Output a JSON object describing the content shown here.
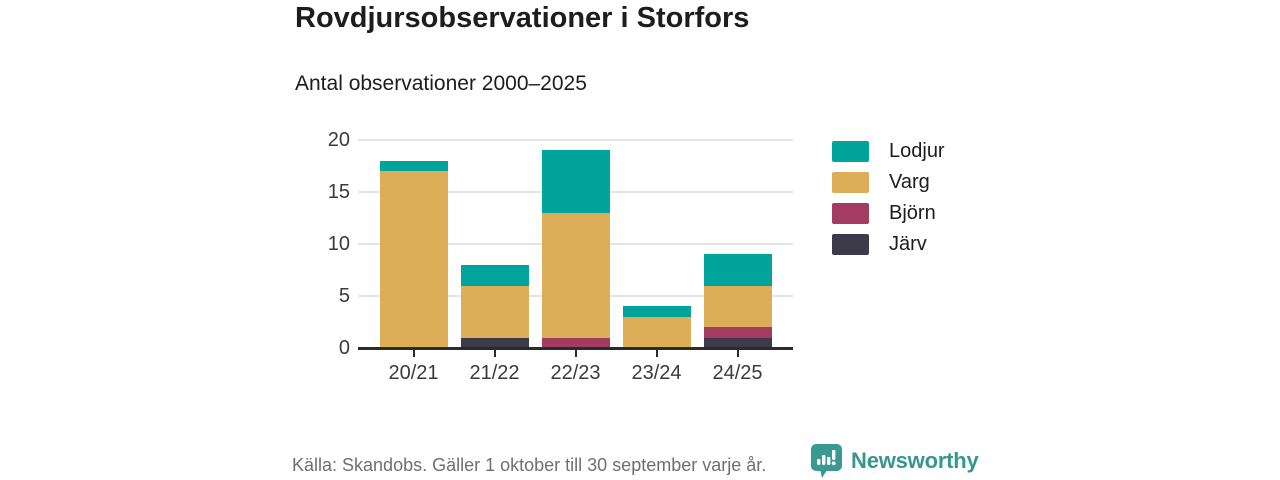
{
  "header": {
    "title": "Rovdjursobservationer i Storfors",
    "subtitle": "Antal observationer 2000–2025"
  },
  "footer": {
    "source": "Källa: Skandobs. Gäller 1 oktober till 30 september varje år.",
    "brand": "Newsworthy"
  },
  "colors": {
    "lodjur": "#00a49a",
    "varg": "#dcae57",
    "bjorn": "#a43c62",
    "jarv": "#3d3b4b",
    "axis": "#2b2b2b",
    "grid": "#e4e4e4",
    "text": "#1d1d1d",
    "muted": "#6f6f6f",
    "brand_teal": "#37968f"
  },
  "chart_data": {
    "type": "bar",
    "stacked": true,
    "title": "Rovdjursobservationer i Storfors",
    "subtitle": "Antal observationer 2000–2025",
    "categories": [
      "20/21",
      "21/22",
      "22/23",
      "23/24",
      "24/25"
    ],
    "series": [
      {
        "name": "Lodjur",
        "color": "#00a49a",
        "values": [
          1,
          2,
          6,
          1,
          3
        ]
      },
      {
        "name": "Varg",
        "color": "#dcae57",
        "values": [
          17,
          5,
          12,
          3,
          4
        ]
      },
      {
        "name": "Björn",
        "color": "#a43c62",
        "values": [
          0,
          0,
          1,
          0,
          1
        ]
      },
      {
        "name": "Järv",
        "color": "#3d3b4b",
        "values": [
          0,
          1,
          0,
          0,
          1
        ]
      }
    ],
    "stack_order_bottom_to_top": [
      "Järv",
      "Björn",
      "Varg",
      "Lodjur"
    ],
    "totals": [
      18,
      8,
      19,
      4,
      9
    ],
    "xlabel": "",
    "ylabel": "",
    "ylim": [
      0,
      20
    ],
    "yticks": [
      0,
      5,
      10,
      15,
      20
    ],
    "grid": true,
    "legend_position": "right"
  }
}
